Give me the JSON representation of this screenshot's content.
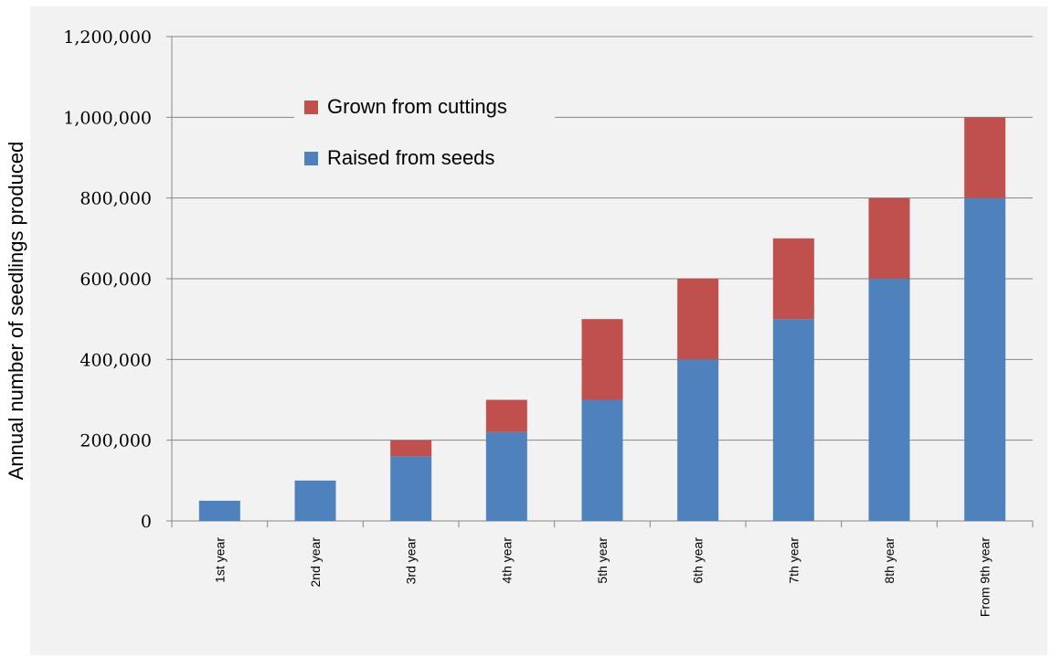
{
  "chart_data": {
    "type": "bar",
    "stacked": true,
    "title": "",
    "xlabel": "",
    "ylabel": "Annual number of seedlings produced",
    "categories": [
      "1st year",
      "2nd year",
      "3rd year",
      "4th year",
      "5th year",
      "6th year",
      "7th year",
      "8th year",
      "From 9th year"
    ],
    "series": [
      {
        "name": "Raised from seeds",
        "color": "#4f81bd",
        "values": [
          50000,
          100000,
          160000,
          220000,
          300000,
          400000,
          500000,
          600000,
          800000
        ]
      },
      {
        "name": "Grown from cuttings",
        "color": "#c0504d",
        "values": [
          0,
          0,
          40000,
          80000,
          200000,
          200000,
          200000,
          200000,
          200000
        ]
      }
    ],
    "ylim": [
      0,
      1200000
    ],
    "yticks": [
      0,
      200000,
      400000,
      600000,
      800000,
      1000000,
      1200000
    ],
    "ytick_labels": [
      "0",
      "200,000",
      "400,000",
      "600,000",
      "800,000",
      "1,000,000",
      "1,200,000"
    ],
    "grid": true,
    "legend_position": "top-left",
    "legend_order": [
      "Grown from cuttings",
      "Raised from seeds"
    ]
  }
}
